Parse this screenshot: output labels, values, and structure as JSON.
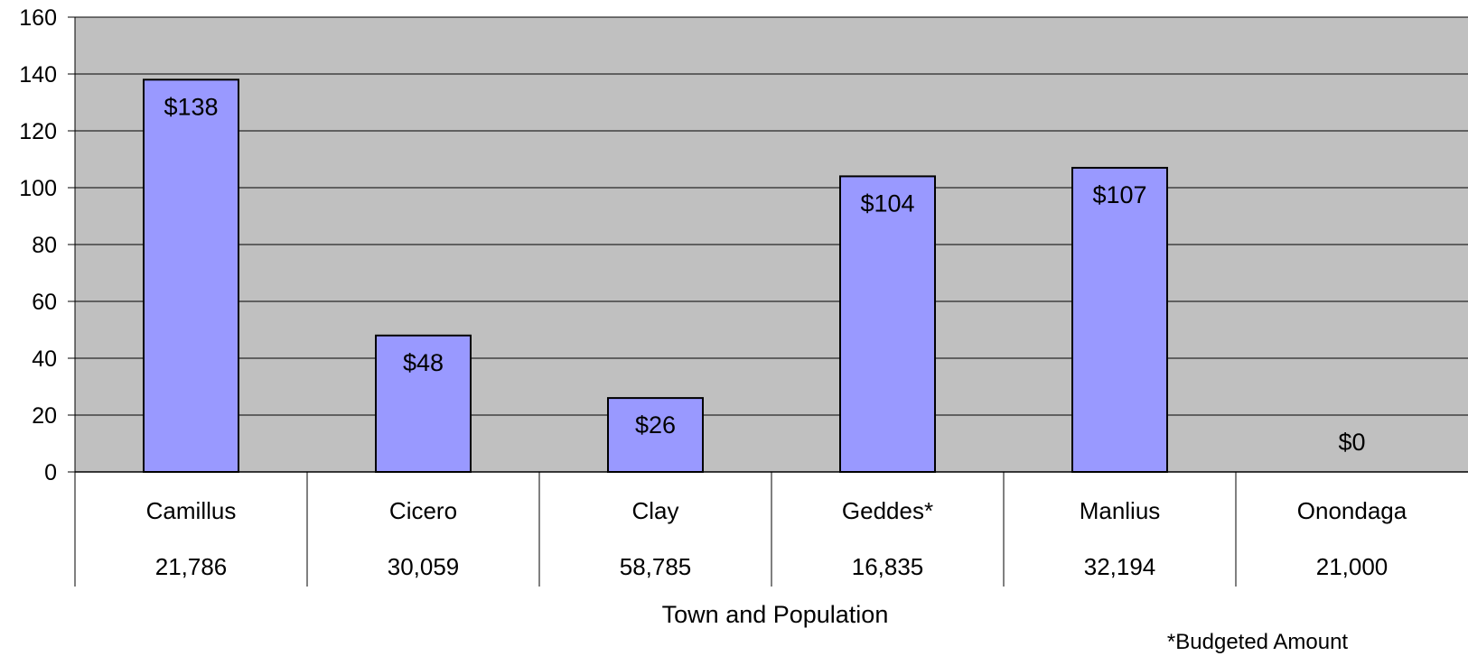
{
  "chart_data": {
    "type": "bar",
    "categories": [
      "Camillus",
      "Cicero",
      "Clay",
      "Geddes*",
      "Manlius",
      "Onondaga"
    ],
    "populations": [
      "21,786",
      "30,059",
      "58,785",
      "16,835",
      "32,194",
      "21,000"
    ],
    "values": [
      138,
      48,
      26,
      104,
      107,
      0
    ],
    "data_labels": [
      "$138",
      "$48",
      "$26",
      "$104",
      "$107",
      "$0"
    ],
    "xlabel": "Town and Population",
    "ylabel": "",
    "ylim": [
      0,
      160
    ],
    "yticks": [
      0,
      20,
      40,
      60,
      80,
      100,
      120,
      140,
      160
    ],
    "grid": true,
    "footnote": "*Budgeted Amount",
    "colors": {
      "plot_background": "#c0c0c0",
      "bar_fill": "#9999ff",
      "bar_stroke": "#000000",
      "gridline": "#000000"
    }
  }
}
